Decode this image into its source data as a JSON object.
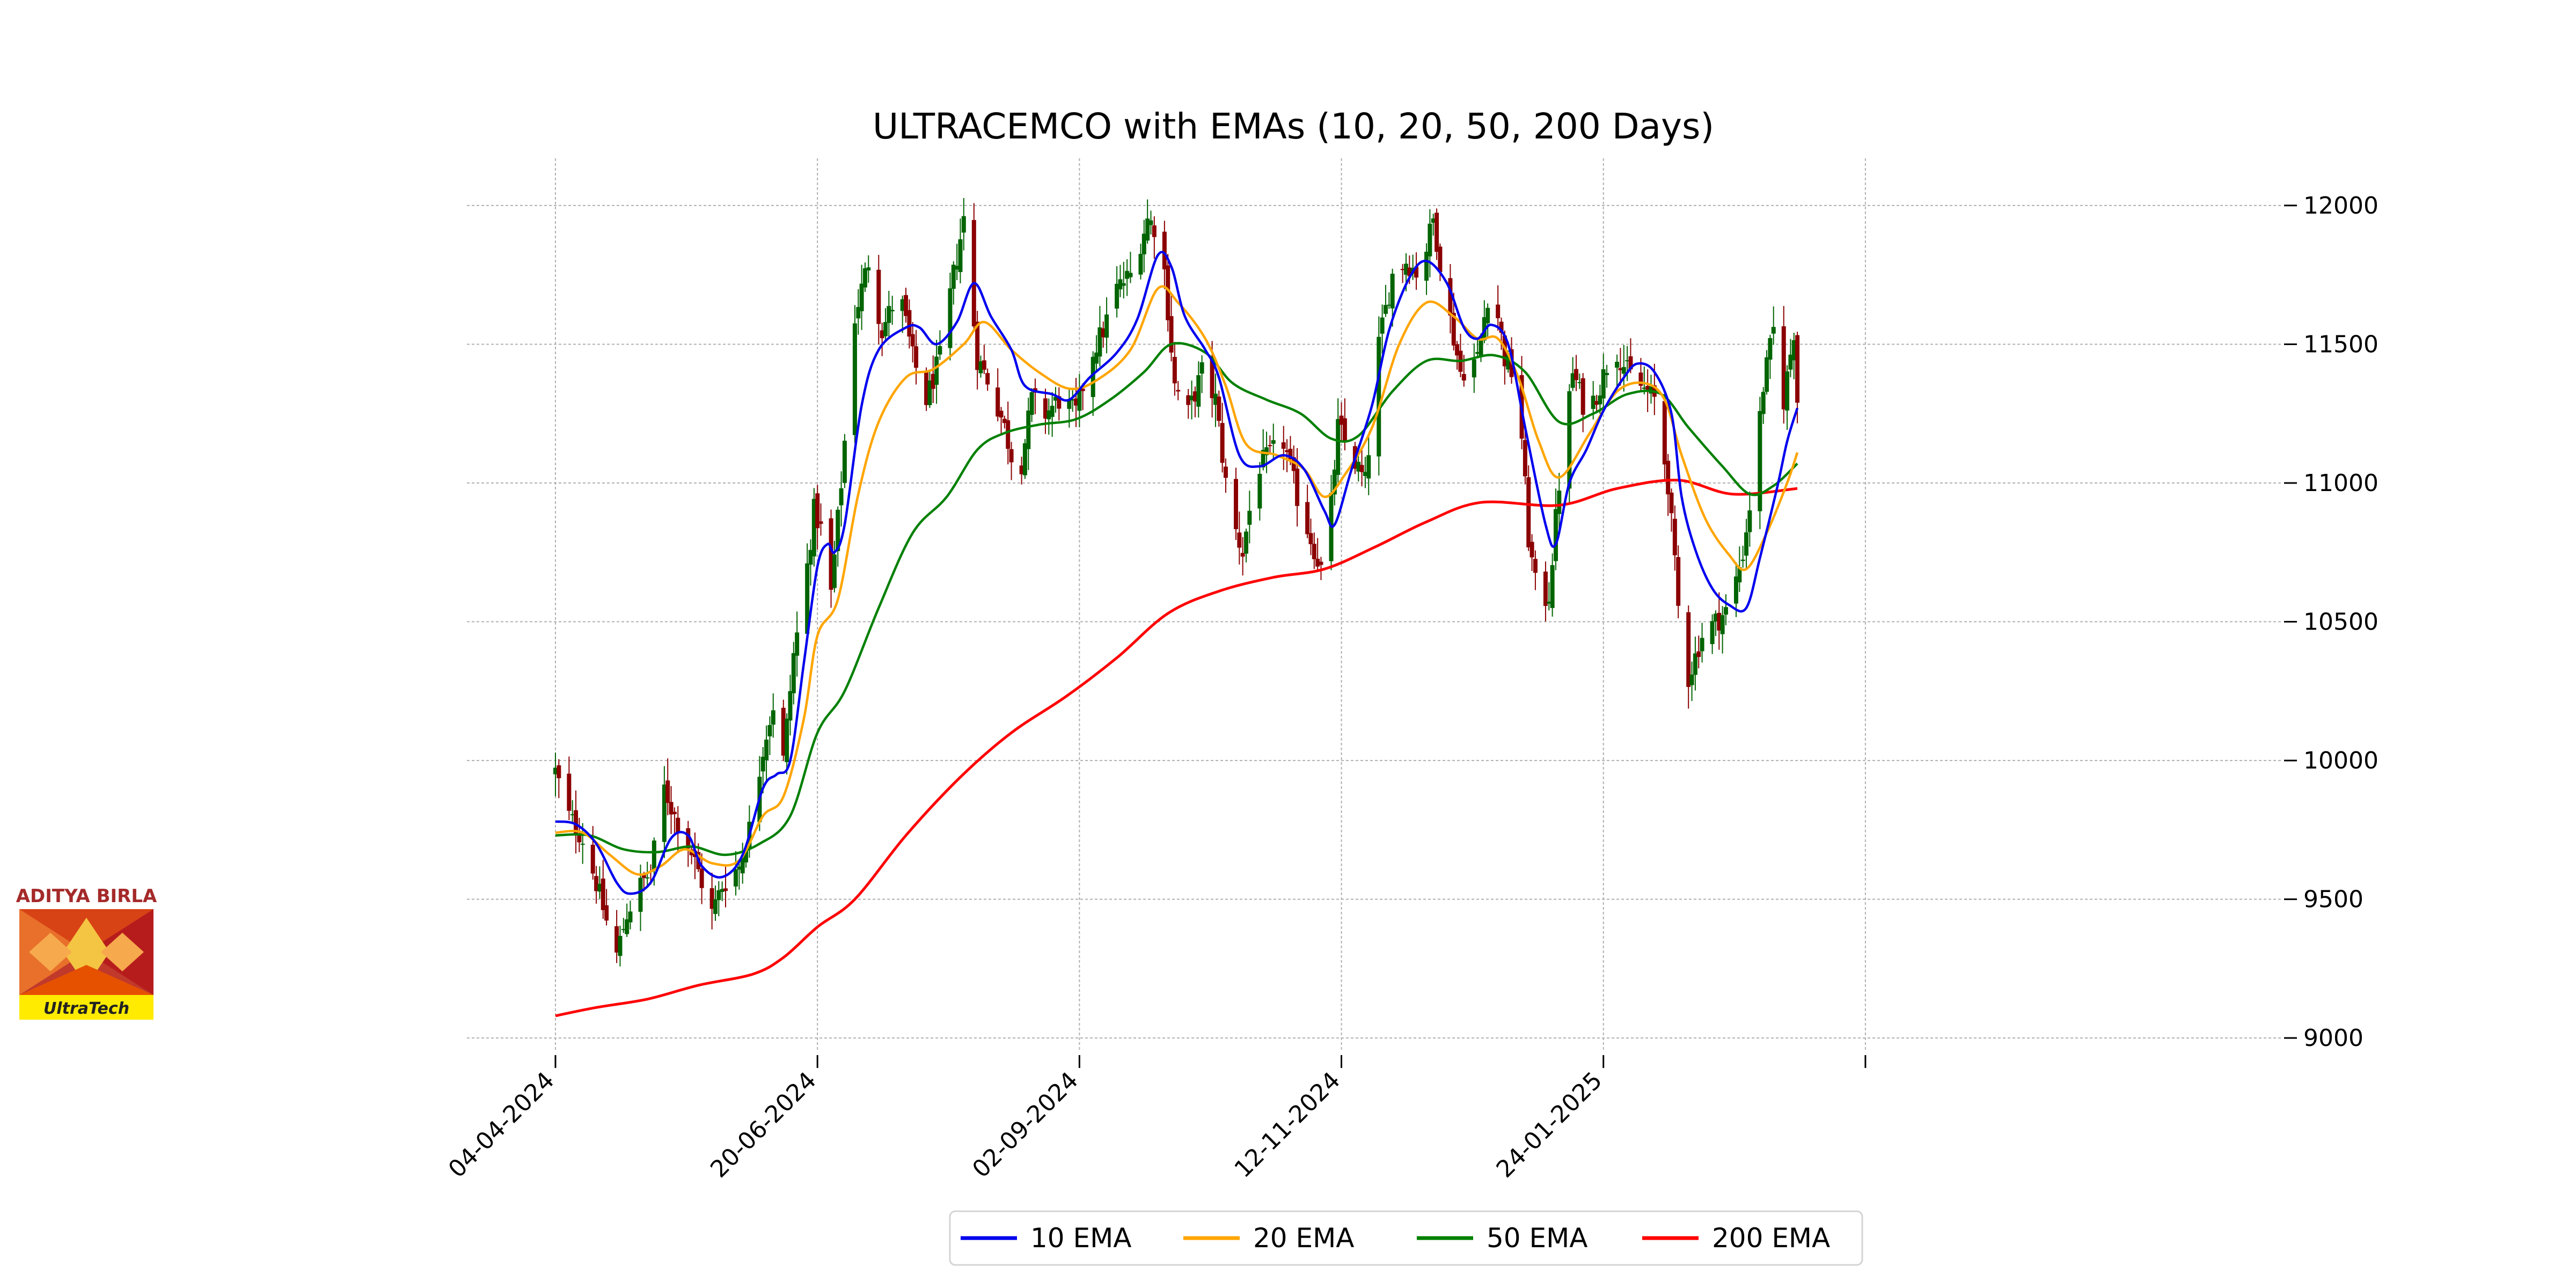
{
  "chart_data": {
    "type": "candlestick",
    "title": "ULTRACEMCO with EMAs (10, 20, 50, 200 Days)",
    "xlabel": "",
    "ylabel": "",
    "ylim": [
      8950,
      12170
    ],
    "yticks": [
      9000,
      9500,
      10000,
      10500,
      11000,
      11500,
      12000
    ],
    "xticks": [
      "04-04-2024",
      "20-06-2024",
      "02-09-2024",
      "12-11-2024",
      "24-01-2025",
      ""
    ],
    "grid": true,
    "legend_position": "bottom-center",
    "x_start": "04-04-2024",
    "x_end": "2025-04-05",
    "colors": {
      "up": "#006400",
      "down": "#8b0000",
      "ema10": "#0000ee",
      "ema20": "#ffa500",
      "ema50": "#008000",
      "ema200": "#ff0000"
    },
    "anchors": [
      [
        "2024-04-04",
        9960
      ],
      [
        "2024-04-08",
        9800
      ],
      [
        "2024-04-12",
        9720
      ],
      [
        "2024-04-16",
        9560
      ],
      [
        "2024-04-19",
        9420
      ],
      [
        "2024-04-22",
        9300
      ],
      [
        "2024-04-25",
        9450
      ],
      [
        "2024-04-29",
        9550
      ],
      [
        "2024-05-02",
        9600
      ],
      [
        "2024-05-06",
        9900
      ],
      [
        "2024-05-09",
        9800
      ],
      [
        "2024-05-13",
        9700
      ],
      [
        "2024-05-16",
        9600
      ],
      [
        "2024-05-20",
        9450
      ],
      [
        "2024-05-23",
        9550
      ],
      [
        "2024-05-28",
        9620
      ],
      [
        "2024-06-01",
        9800
      ],
      [
        "2024-06-04",
        10050
      ],
      [
        "2024-06-07",
        10200
      ],
      [
        "2024-06-10",
        10000
      ],
      [
        "2024-06-13",
        10380
      ],
      [
        "2024-06-16",
        10600
      ],
      [
        "2024-06-19",
        10900
      ],
      [
        "2024-06-22",
        10800
      ],
      [
        "2024-06-24",
        10600
      ],
      [
        "2024-06-27",
        11000
      ],
      [
        "2024-07-01",
        11600
      ],
      [
        "2024-07-05",
        11800
      ],
      [
        "2024-07-09",
        11550
      ],
      [
        "2024-07-14",
        11700
      ],
      [
        "2024-07-18",
        11450
      ],
      [
        "2024-07-22",
        11300
      ],
      [
        "2024-07-26",
        11450
      ],
      [
        "2024-07-30",
        11750
      ],
      [
        "2024-08-02",
        11950
      ],
      [
        "2024-08-06",
        11450
      ],
      [
        "2024-08-10",
        11350
      ],
      [
        "2024-08-14",
        11200
      ],
      [
        "2024-08-18",
        11000
      ],
      [
        "2024-08-22",
        11300
      ],
      [
        "2024-08-26",
        11250
      ],
      [
        "2024-08-30",
        11300
      ],
      [
        "2024-09-04",
        11250
      ],
      [
        "2024-09-08",
        11450
      ],
      [
        "2024-09-12",
        11550
      ],
      [
        "2024-09-16",
        11700
      ],
      [
        "2024-09-20",
        11750
      ],
      [
        "2024-09-25",
        11950
      ],
      [
        "2024-09-29",
        11900
      ],
      [
        "2024-10-03",
        11350
      ],
      [
        "2024-10-07",
        11250
      ],
      [
        "2024-10-11",
        11400
      ],
      [
        "2024-10-15",
        11300
      ],
      [
        "2024-10-19",
        10900
      ],
      [
        "2024-10-23",
        10750
      ],
      [
        "2024-10-27",
        11050
      ],
      [
        "2024-10-31",
        11100
      ],
      [
        "2024-11-04",
        11150
      ],
      [
        "2024-11-08",
        10950
      ],
      [
        "2024-11-12",
        10800
      ],
      [
        "2024-11-16",
        10650
      ],
      [
        "2024-11-20",
        11200
      ],
      [
        "2024-11-24",
        11100
      ],
      [
        "2024-11-28",
        11000
      ],
      [
        "2024-12-02",
        11500
      ],
      [
        "2024-12-06",
        11750
      ],
      [
        "2024-12-10",
        11800
      ],
      [
        "2024-12-14",
        11750
      ],
      [
        "2024-12-18",
        11950
      ],
      [
        "2024-12-22",
        11650
      ],
      [
        "2024-12-26",
        11400
      ],
      [
        "2024-12-31",
        11450
      ],
      [
        "2025-01-04",
        11750
      ],
      [
        "2025-01-08",
        11450
      ],
      [
        "2025-01-12",
        11350
      ],
      [
        "2025-01-15",
        10800
      ],
      [
        "2025-01-18",
        10550
      ],
      [
        "2025-01-21",
        10600
      ],
      [
        "2025-01-24",
        11000
      ],
      [
        "2025-01-28",
        11400
      ],
      [
        "2025-02-01",
        11250
      ],
      [
        "2025-02-05",
        11350
      ],
      [
        "2025-02-09",
        11500
      ],
      [
        "2025-02-13",
        11400
      ],
      [
        "2025-02-17",
        11350
      ],
      [
        "2025-02-21",
        11300
      ],
      [
        "2025-02-25",
        11000
      ],
      [
        "2025-02-28",
        10550
      ],
      [
        "2025-03-03",
        10300
      ],
      [
        "2025-03-07",
        10450
      ],
      [
        "2025-03-11",
        10500
      ],
      [
        "2025-03-15",
        10550
      ],
      [
        "2025-03-19",
        10750
      ],
      [
        "2025-03-22",
        11000
      ],
      [
        "2025-03-25",
        11350
      ],
      [
        "2025-03-28",
        11550
      ],
      [
        "2025-03-31",
        11300
      ],
      [
        "2025-04-03",
        11550
      ],
      [
        "2025-04-04",
        11300
      ]
    ],
    "series": [
      {
        "name": "10 EMA",
        "key": "ema10",
        "points": [
          [
            "2024-04-04",
            9780
          ],
          [
            "2024-04-10",
            9770
          ],
          [
            "2024-04-16",
            9700
          ],
          [
            "2024-04-22",
            9560
          ],
          [
            "2024-04-26",
            9520
          ],
          [
            "2024-05-02",
            9560
          ],
          [
            "2024-05-08",
            9720
          ],
          [
            "2024-05-13",
            9730
          ],
          [
            "2024-05-17",
            9620
          ],
          [
            "2024-05-23",
            9580
          ],
          [
            "2024-05-29",
            9660
          ],
          [
            "2024-06-04",
            9900
          ],
          [
            "2024-06-08",
            9950
          ],
          [
            "2024-06-12",
            10000
          ],
          [
            "2024-06-16",
            10350
          ],
          [
            "2024-06-20",
            10700
          ],
          [
            "2024-06-23",
            10780
          ],
          [
            "2024-06-25",
            10750
          ],
          [
            "2024-06-28",
            10850
          ],
          [
            "2024-07-03",
            11280
          ],
          [
            "2024-07-08",
            11480
          ],
          [
            "2024-07-16",
            11560
          ],
          [
            "2024-07-20",
            11560
          ],
          [
            "2024-07-25",
            11500
          ],
          [
            "2024-07-31",
            11580
          ],
          [
            "2024-08-05",
            11720
          ],
          [
            "2024-08-10",
            11600
          ],
          [
            "2024-08-16",
            11480
          ],
          [
            "2024-08-20",
            11350
          ],
          [
            "2024-08-28",
            11320
          ],
          [
            "2024-09-02",
            11300
          ],
          [
            "2024-09-08",
            11380
          ],
          [
            "2024-09-16",
            11470
          ],
          [
            "2024-09-22",
            11590
          ],
          [
            "2024-09-28",
            11820
          ],
          [
            "2024-10-02",
            11780
          ],
          [
            "2024-10-06",
            11600
          ],
          [
            "2024-10-12",
            11480
          ],
          [
            "2024-10-16",
            11380
          ],
          [
            "2024-10-22",
            11100
          ],
          [
            "2024-10-28",
            11060
          ],
          [
            "2024-11-04",
            11100
          ],
          [
            "2024-11-10",
            11050
          ],
          [
            "2024-11-16",
            10900
          ],
          [
            "2024-11-19",
            10850
          ],
          [
            "2024-11-24",
            11050
          ],
          [
            "2024-11-30",
            11280
          ],
          [
            "2024-12-05",
            11550
          ],
          [
            "2024-12-11",
            11740
          ],
          [
            "2024-12-16",
            11800
          ],
          [
            "2024-12-22",
            11720
          ],
          [
            "2024-12-27",
            11560
          ],
          [
            "2024-12-31",
            11520
          ],
          [
            "2025-01-04",
            11570
          ],
          [
            "2025-01-09",
            11500
          ],
          [
            "2025-01-14",
            11200
          ],
          [
            "2025-01-20",
            10850
          ],
          [
            "2025-01-23",
            10780
          ],
          [
            "2025-01-27",
            11000
          ],
          [
            "2025-02-01",
            11120
          ],
          [
            "2025-02-06",
            11260
          ],
          [
            "2025-02-12",
            11380
          ],
          [
            "2025-02-16",
            11430
          ],
          [
            "2025-02-21",
            11400
          ],
          [
            "2025-02-26",
            11250
          ],
          [
            "2025-03-01",
            10950
          ],
          [
            "2025-03-05",
            10760
          ],
          [
            "2025-03-10",
            10620
          ],
          [
            "2025-03-15",
            10560
          ],
          [
            "2025-03-20",
            10550
          ],
          [
            "2025-03-24",
            10730
          ],
          [
            "2025-03-29",
            10980
          ],
          [
            "2025-04-01",
            11150
          ],
          [
            "2025-04-04",
            11270
          ]
        ]
      },
      {
        "name": "20 EMA",
        "key": "ema20",
        "points": [
          [
            "2024-04-04",
            9740
          ],
          [
            "2024-04-12",
            9740
          ],
          [
            "2024-04-20",
            9660
          ],
          [
            "2024-04-28",
            9590
          ],
          [
            "2024-05-05",
            9620
          ],
          [
            "2024-05-12",
            9680
          ],
          [
            "2024-05-20",
            9630
          ],
          [
            "2024-05-28",
            9640
          ],
          [
            "2024-06-04",
            9800
          ],
          [
            "2024-06-10",
            9870
          ],
          [
            "2024-06-16",
            10150
          ],
          [
            "2024-06-20",
            10450
          ],
          [
            "2024-06-26",
            10580
          ],
          [
            "2024-07-02",
            10960
          ],
          [
            "2024-07-08",
            11220
          ],
          [
            "2024-07-16",
            11380
          ],
          [
            "2024-07-24",
            11410
          ],
          [
            "2024-08-02",
            11500
          ],
          [
            "2024-08-08",
            11580
          ],
          [
            "2024-08-16",
            11480
          ],
          [
            "2024-08-24",
            11400
          ],
          [
            "2024-09-02",
            11340
          ],
          [
            "2024-09-10",
            11370
          ],
          [
            "2024-09-20",
            11480
          ],
          [
            "2024-09-28",
            11700
          ],
          [
            "2024-10-04",
            11650
          ],
          [
            "2024-10-12",
            11520
          ],
          [
            "2024-10-18",
            11350
          ],
          [
            "2024-10-24",
            11140
          ],
          [
            "2024-11-02",
            11100
          ],
          [
            "2024-11-10",
            11050
          ],
          [
            "2024-11-16",
            10950
          ],
          [
            "2024-11-22",
            11030
          ],
          [
            "2024-11-30",
            11200
          ],
          [
            "2024-12-08",
            11500
          ],
          [
            "2024-12-16",
            11650
          ],
          [
            "2024-12-24",
            11600
          ],
          [
            "2024-12-31",
            11520
          ],
          [
            "2025-01-06",
            11520
          ],
          [
            "2025-01-12",
            11380
          ],
          [
            "2025-01-18",
            11150
          ],
          [
            "2025-01-24",
            11020
          ],
          [
            "2025-02-02",
            11180
          ],
          [
            "2025-02-10",
            11330
          ],
          [
            "2025-02-18",
            11360
          ],
          [
            "2025-02-24",
            11300
          ],
          [
            "2025-03-01",
            11100
          ],
          [
            "2025-03-08",
            10870
          ],
          [
            "2025-03-15",
            10740
          ],
          [
            "2025-03-20",
            10690
          ],
          [
            "2025-03-26",
            10820
          ],
          [
            "2025-04-01",
            11000
          ],
          [
            "2025-04-04",
            11110
          ]
        ]
      },
      {
        "name": "50 EMA",
        "key": "ema50",
        "points": [
          [
            "2024-04-04",
            9730
          ],
          [
            "2024-04-14",
            9730
          ],
          [
            "2024-04-24",
            9680
          ],
          [
            "2024-05-04",
            9670
          ],
          [
            "2024-05-14",
            9690
          ],
          [
            "2024-05-24",
            9660
          ],
          [
            "2024-06-03",
            9700
          ],
          [
            "2024-06-12",
            9800
          ],
          [
            "2024-06-20",
            10100
          ],
          [
            "2024-06-28",
            10250
          ],
          [
            "2024-07-08",
            10550
          ],
          [
            "2024-07-18",
            10820
          ],
          [
            "2024-07-28",
            10950
          ],
          [
            "2024-08-06",
            11120
          ],
          [
            "2024-08-14",
            11180
          ],
          [
            "2024-08-24",
            11210
          ],
          [
            "2024-09-04",
            11230
          ],
          [
            "2024-09-14",
            11300
          ],
          [
            "2024-09-24",
            11400
          ],
          [
            "2024-10-02",
            11500
          ],
          [
            "2024-10-12",
            11470
          ],
          [
            "2024-10-20",
            11360
          ],
          [
            "2024-10-30",
            11300
          ],
          [
            "2024-11-09",
            11250
          ],
          [
            "2024-11-18",
            11160
          ],
          [
            "2024-11-26",
            11170
          ],
          [
            "2024-12-06",
            11330
          ],
          [
            "2024-12-16",
            11440
          ],
          [
            "2024-12-26",
            11440
          ],
          [
            "2025-01-05",
            11460
          ],
          [
            "2025-01-14",
            11400
          ],
          [
            "2025-01-24",
            11220
          ],
          [
            "2025-02-03",
            11250
          ],
          [
            "2025-02-13",
            11320
          ],
          [
            "2025-02-23",
            11320
          ],
          [
            "2025-03-03",
            11200
          ],
          [
            "2025-03-13",
            11060
          ],
          [
            "2025-03-21",
            10960
          ],
          [
            "2025-03-28",
            10990
          ],
          [
            "2025-04-04",
            11070
          ]
        ]
      },
      {
        "name": "200 EMA",
        "key": "ema200",
        "points": [
          [
            "2024-04-04",
            9080
          ],
          [
            "2024-04-16",
            9110
          ],
          [
            "2024-05-01",
            9140
          ],
          [
            "2024-05-16",
            9190
          ],
          [
            "2024-06-01",
            9230
          ],
          [
            "2024-06-10",
            9290
          ],
          [
            "2024-06-20",
            9400
          ],
          [
            "2024-07-01",
            9500
          ],
          [
            "2024-07-16",
            9730
          ],
          [
            "2024-08-01",
            9940
          ],
          [
            "2024-08-16",
            10100
          ],
          [
            "2024-09-01",
            10230
          ],
          [
            "2024-09-16",
            10370
          ],
          [
            "2024-10-01",
            10530
          ],
          [
            "2024-10-16",
            10610
          ],
          [
            "2024-11-01",
            10660
          ],
          [
            "2024-11-16",
            10690
          ],
          [
            "2024-12-01",
            10770
          ],
          [
            "2024-12-16",
            10860
          ],
          [
            "2025-01-01",
            10930
          ],
          [
            "2025-01-24",
            10920
          ],
          [
            "2025-02-10",
            10980
          ],
          [
            "2025-02-28",
            11010
          ],
          [
            "2025-03-16",
            10960
          ],
          [
            "2025-04-04",
            10980
          ]
        ]
      }
    ]
  },
  "logo": {
    "top_text": "ADITYA BIRLA",
    "bottom_text": "UltraTech"
  }
}
